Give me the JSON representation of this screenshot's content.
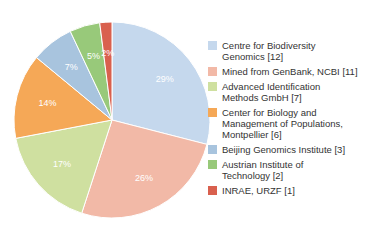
{
  "chart_data": {
    "type": "pie",
    "categories": [
      "Centre for Biodiversity\nGenomics [12]",
      "Mined from GenBank, NCBI [11]",
      "Advanced Identification\nMethods GmbH [7]",
      "Center for Biology and\nManagement of Populations,\nMontpellier [6]",
      "Beijing Genomics Institute [3]",
      "Austrian Institute of\nTechnology [2]",
      "INRAE, URZF [1]"
    ],
    "values": [
      29,
      26,
      17,
      14,
      7,
      5,
      2
    ],
    "value_labels": [
      "29%",
      "26%",
      "17%",
      "14%",
      "7%",
      "5%",
      "2%"
    ],
    "colors": [
      "#c5d8ed",
      "#f2b9a7",
      "#cfe0a0",
      "#f5a857",
      "#a8c4de",
      "#98c97a",
      "#d9604e"
    ],
    "data_labels": true,
    "legend": "right"
  }
}
